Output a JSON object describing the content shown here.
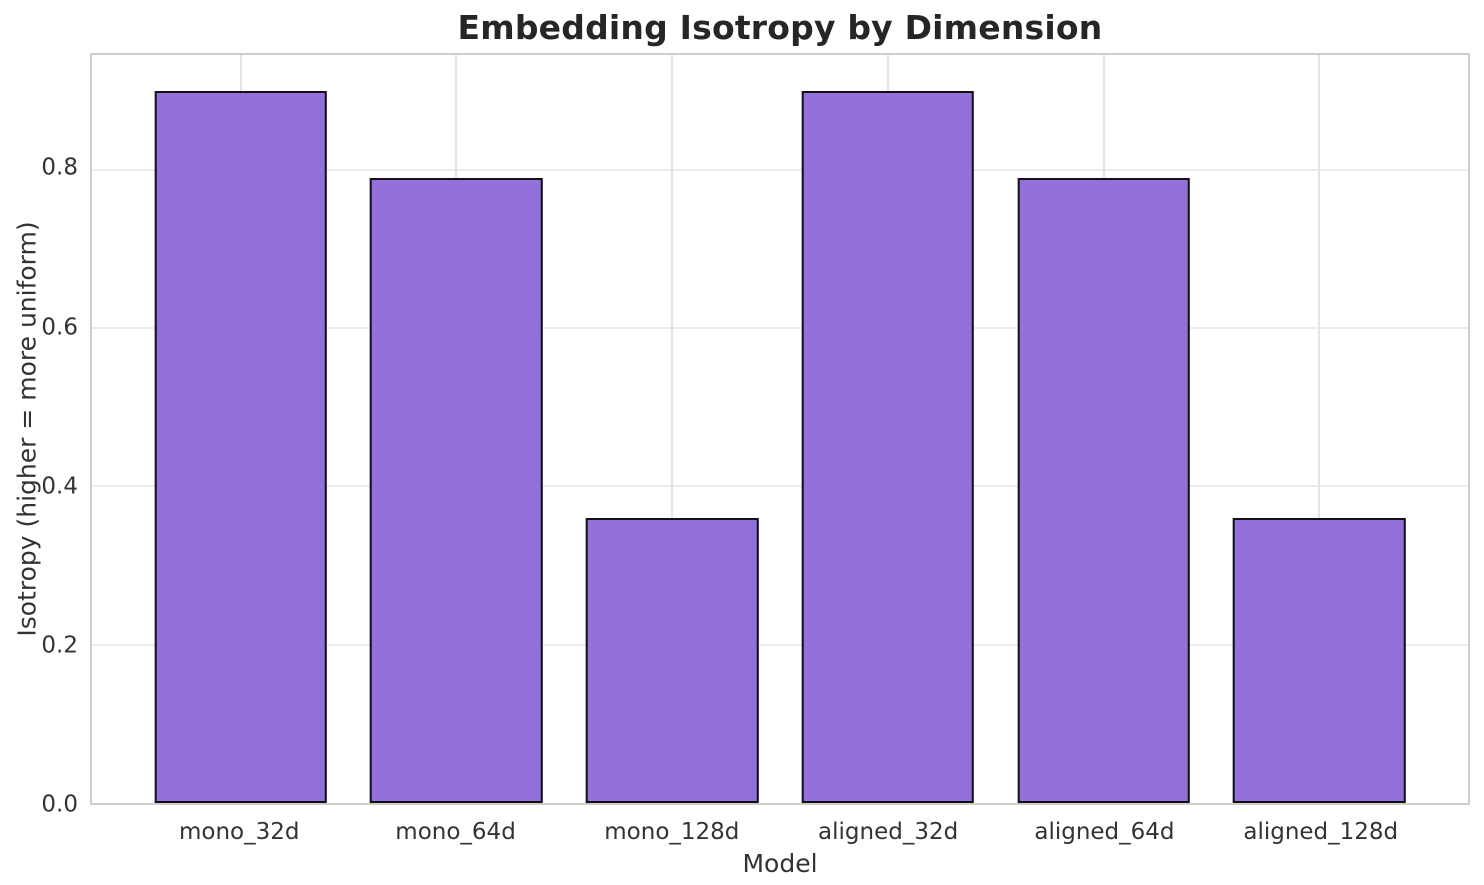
{
  "chart_data": {
    "type": "bar",
    "title": "Embedding Isotropy by Dimension",
    "xlabel": "Model",
    "ylabel": "Isotropy (higher = more uniform)",
    "categories": [
      "mono_32d",
      "mono_64d",
      "mono_128d",
      "aligned_32d",
      "aligned_64d",
      "aligned_128d"
    ],
    "values": [
      0.9,
      0.79,
      0.36,
      0.9,
      0.79,
      0.36
    ],
    "ylim": [
      0,
      0.945
    ],
    "yticks": [
      {
        "value": 0.0,
        "label": "0.0"
      },
      {
        "value": 0.2,
        "label": "0.2"
      },
      {
        "value": 0.4,
        "label": "0.4"
      },
      {
        "value": 0.6,
        "label": "0.6"
      },
      {
        "value": 0.8,
        "label": "0.8"
      }
    ],
    "grid": true,
    "legend": "none",
    "bar_color": "#9370db",
    "bar_edge_color": "#111111",
    "grid_color": "#ececec",
    "spine_color": "#cdcdcd"
  }
}
